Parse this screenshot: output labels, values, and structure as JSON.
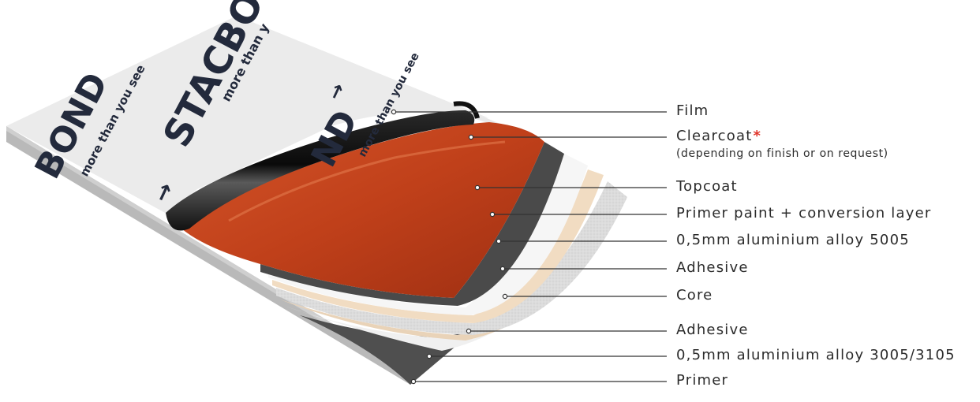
{
  "film_print": {
    "brand": "STACBOND",
    "brand_partial_top": "STACBON",
    "brand_partial_left": "BOND",
    "brand_partial_center": "ND",
    "tagline": "more than you see",
    "tagline_partial": "more than y"
  },
  "layers": [
    {
      "label": "Film"
    },
    {
      "label": "Clearcoat",
      "marker": "*",
      "note": "(depending on finish or on request)"
    },
    {
      "label": "Topcoat"
    },
    {
      "label": "Primer paint + conversion layer"
    },
    {
      "label": "0,5mm aluminium alloy 5005"
    },
    {
      "label": "Adhesive"
    },
    {
      "label": "Core"
    },
    {
      "label": "Adhesive"
    },
    {
      "label": "0,5mm aluminium alloy 3005/3105"
    },
    {
      "label": "Primer"
    }
  ],
  "colors": {
    "film": "#ececec",
    "topcoat": "#c5441c",
    "primer_paint": "#4a4a4a",
    "aluminium": "#f3f3f3",
    "adhesive": "#f2dcc4",
    "core": "#dedede",
    "primer": "#505050",
    "asterisk": "#e0342a",
    "lines": "#333333"
  }
}
